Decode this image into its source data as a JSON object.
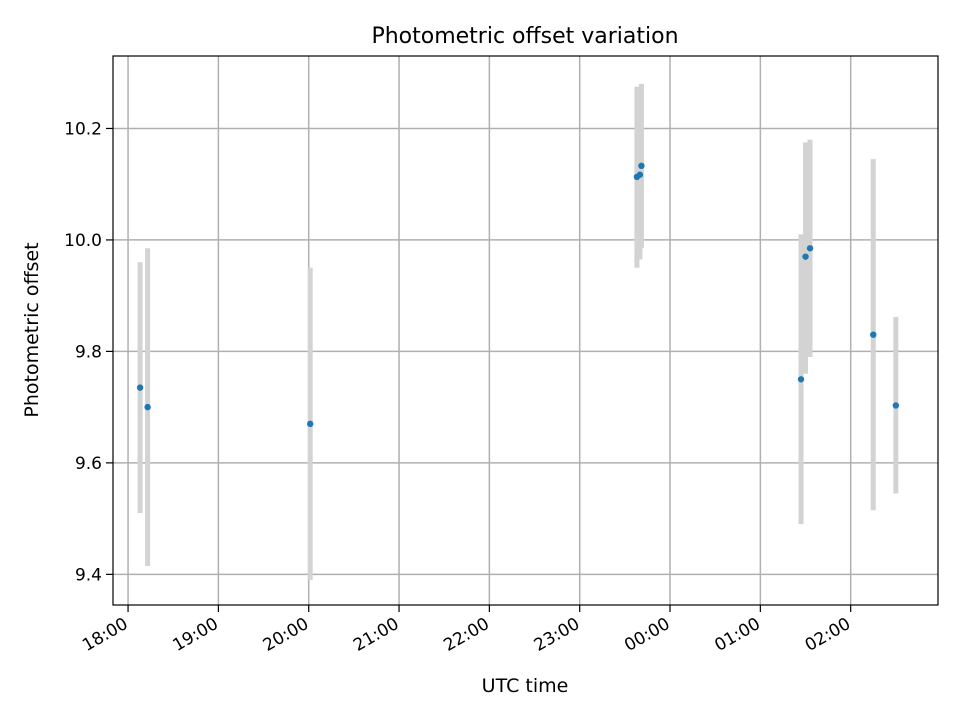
{
  "chart_data": {
    "type": "scatter",
    "title": "Photometric offset variation",
    "xlabel": "UTC time",
    "ylabel": "Photometric offset",
    "x_axis": "time",
    "xlim": [
      "17:50",
      "26:58"
    ],
    "ylim": [
      9.345,
      10.33
    ],
    "x_ticks": [
      "18:00",
      "19:00",
      "20:00",
      "21:00",
      "22:00",
      "23:00",
      "00:00",
      "01:00",
      "02:00"
    ],
    "y_ticks": [
      "9.4",
      "9.6",
      "9.8",
      "10.0",
      "10.2"
    ],
    "grid": true,
    "point_color": "#1f77b4",
    "errorbar_color": "#d3d3d3",
    "points": [
      {
        "time": "18:08",
        "value": 9.735,
        "low": 9.51,
        "high": 9.96
      },
      {
        "time": "18:13",
        "value": 9.7,
        "low": 9.415,
        "high": 9.985
      },
      {
        "time": "20:01",
        "value": 9.67,
        "low": 9.39,
        "high": 9.95
      },
      {
        "time": "23:38",
        "value": 10.113,
        "low": 9.95,
        "high": 10.275
      },
      {
        "time": "23:40",
        "value": 10.117,
        "low": 9.965,
        "high": 10.27
      },
      {
        "time": "23:41",
        "value": 10.133,
        "low": 9.985,
        "high": 10.28
      },
      {
        "time": "01:27",
        "value": 9.75,
        "low": 9.49,
        "high": 10.01
      },
      {
        "time": "01:30",
        "value": 9.97,
        "low": 9.76,
        "high": 10.175
      },
      {
        "time": "01:33",
        "value": 9.985,
        "low": 9.79,
        "high": 10.18
      },
      {
        "time": "02:15",
        "value": 9.83,
        "low": 9.515,
        "high": 10.145
      },
      {
        "time": "02:30",
        "value": 9.703,
        "low": 9.545,
        "high": 9.862
      }
    ]
  }
}
